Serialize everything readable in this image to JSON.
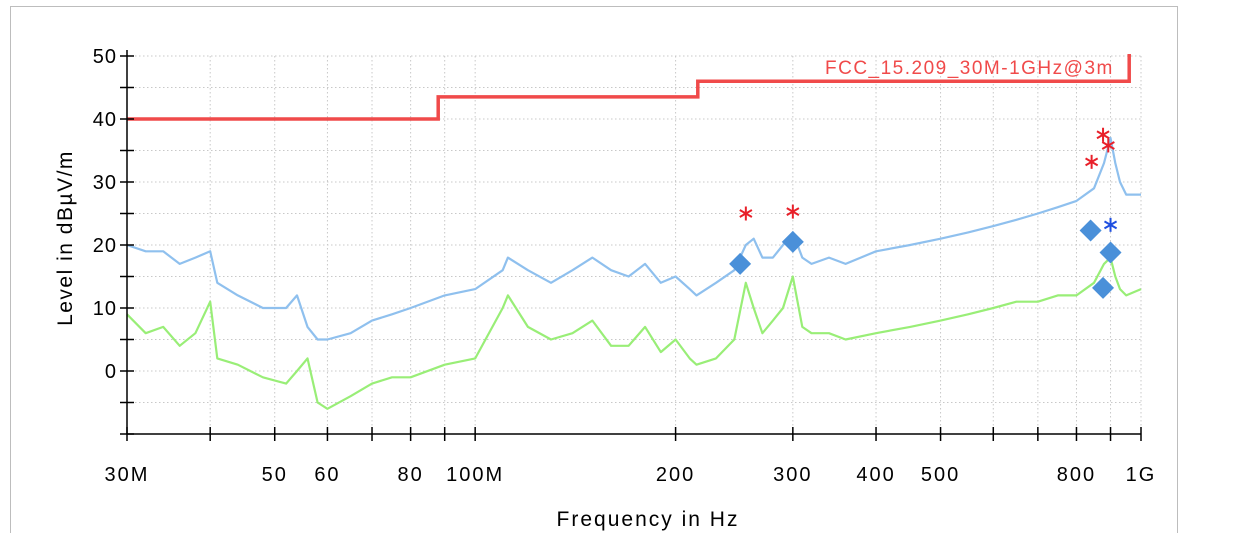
{
  "chart_data": {
    "type": "line",
    "title": "",
    "xlabel": "Frequency in Hz",
    "ylabel": "Level in dBµV/m",
    "x_scale": "log",
    "xlim": [
      30000000,
      1000000000
    ],
    "ylim": [
      -10,
      50
    ],
    "grid": true,
    "x_ticks": [
      {
        "value": 30000000,
        "label": "30M"
      },
      {
        "value": 50000000,
        "label": "50"
      },
      {
        "value": 60000000,
        "label": "60"
      },
      {
        "value": 80000000,
        "label": "80"
      },
      {
        "value": 100000000,
        "label": "100M"
      },
      {
        "value": 200000000,
        "label": "200"
      },
      {
        "value": 300000000,
        "label": "300"
      },
      {
        "value": 400000000,
        "label": "400"
      },
      {
        "value": 500000000,
        "label": "500"
      },
      {
        "value": 800000000,
        "label": "800"
      },
      {
        "value": 1000000000,
        "label": "1G"
      }
    ],
    "y_ticks": [
      {
        "value": 0,
        "label": "0"
      },
      {
        "value": 10,
        "label": "10"
      },
      {
        "value": 20,
        "label": "20"
      },
      {
        "value": 30,
        "label": "30"
      },
      {
        "value": 40,
        "label": "40"
      },
      {
        "value": 50,
        "label": "50"
      }
    ],
    "limit_line": {
      "label": "FCC_15.209_30M-1GHz@3m",
      "color": "#f04a4a",
      "points": [
        [
          30000000,
          40
        ],
        [
          88000000,
          40
        ],
        [
          88000000,
          43.5
        ],
        [
          216000000,
          43.5
        ],
        [
          216000000,
          46
        ],
        [
          960000000,
          46
        ],
        [
          960000000,
          54
        ]
      ]
    },
    "series": [
      {
        "color": "#8fc0ee",
        "x": [
          30000000,
          32000000,
          34000000,
          36000000,
          38000000,
          40000000,
          41000000,
          44000000,
          48000000,
          52000000,
          54000000,
          56000000,
          58000000,
          60000000,
          65000000,
          70000000,
          75000000,
          80000000,
          90000000,
          100000000,
          110000000,
          112000000,
          120000000,
          130000000,
          140000000,
          150000000,
          160000000,
          170000000,
          180000000,
          190000000,
          200000000,
          210000000,
          215000000,
          230000000,
          245000000,
          255000000,
          262000000,
          270000000,
          280000000,
          290000000,
          300000000,
          310000000,
          320000000,
          340000000,
          360000000,
          400000000,
          450000000,
          500000000,
          550000000,
          600000000,
          650000000,
          700000000,
          750000000,
          800000000,
          850000000,
          880000000,
          900000000,
          915000000,
          930000000,
          950000000,
          1000000000
        ],
        "y": [
          20,
          19,
          19,
          17,
          18,
          19,
          14,
          12,
          10,
          10,
          12,
          7,
          5,
          5,
          6,
          8,
          9,
          10,
          12,
          13,
          16,
          18,
          16,
          14,
          16,
          18,
          16,
          15,
          17,
          14,
          15,
          13,
          12,
          14,
          16,
          20,
          21,
          18,
          18,
          20,
          22,
          18,
          17,
          18,
          17,
          19,
          20,
          21,
          22,
          23,
          24,
          25,
          26,
          27,
          29,
          33,
          37,
          33,
          30,
          28,
          28
        ]
      },
      {
        "color": "#99ee77",
        "x": [
          30000000,
          32000000,
          34000000,
          36000000,
          38000000,
          40000000,
          41000000,
          44000000,
          48000000,
          52000000,
          54000000,
          56000000,
          58000000,
          60000000,
          65000000,
          70000000,
          75000000,
          80000000,
          90000000,
          100000000,
          110000000,
          112000000,
          120000000,
          130000000,
          140000000,
          150000000,
          160000000,
          170000000,
          180000000,
          190000000,
          200000000,
          210000000,
          215000000,
          230000000,
          245000000,
          255000000,
          262000000,
          270000000,
          280000000,
          290000000,
          300000000,
          310000000,
          320000000,
          340000000,
          360000000,
          400000000,
          450000000,
          500000000,
          550000000,
          600000000,
          650000000,
          700000000,
          750000000,
          800000000,
          850000000,
          880000000,
          900000000,
          915000000,
          930000000,
          950000000,
          1000000000
        ],
        "y": [
          9,
          6,
          7,
          4,
          6,
          11,
          2,
          1,
          -1,
          -2,
          0,
          2,
          -5,
          -6,
          -4,
          -2,
          -1,
          -1,
          1,
          2,
          10,
          12,
          7,
          5,
          6,
          8,
          4,
          4,
          7,
          3,
          5,
          2,
          1,
          2,
          5,
          14,
          10,
          6,
          8,
          10,
          15,
          7,
          6,
          6,
          5,
          6,
          7,
          8,
          9,
          10,
          11,
          11,
          12,
          12,
          14,
          17,
          18,
          15,
          13,
          12,
          13
        ]
      }
    ],
    "peak_markers": [
      {
        "x": 255000000,
        "y": 25,
        "color": "#e8202a"
      },
      {
        "x": 300000000,
        "y": 25.3,
        "color": "#e8202a"
      },
      {
        "x": 843000000,
        "y": 33.2,
        "color": "#e8202a"
      },
      {
        "x": 877000000,
        "y": 37.5,
        "color": "#e8202a"
      },
      {
        "x": 893000000,
        "y": 35.8,
        "color": "#e8202a"
      },
      {
        "x": 900000000,
        "y": 23.2,
        "color": "#1f4fe0"
      }
    ],
    "final_markers": [
      {
        "x": 250000000,
        "y": 17,
        "color": "#4a90d9"
      },
      {
        "x": 300000000,
        "y": 20.5,
        "color": "#4a90d9"
      },
      {
        "x": 840000000,
        "y": 22.3,
        "color": "#4a90d9"
      },
      {
        "x": 900000000,
        "y": 18.8,
        "color": "#4a90d9"
      },
      {
        "x": 877000000,
        "y": 13.2,
        "color": "#4a90d9"
      }
    ]
  }
}
